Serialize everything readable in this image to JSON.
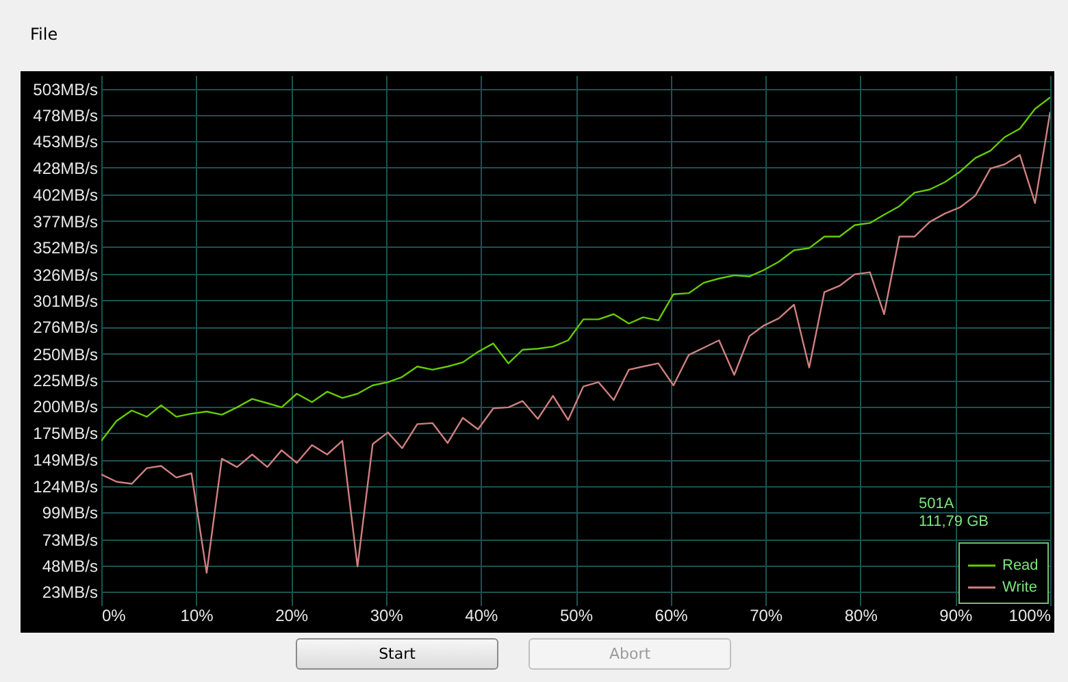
{
  "chart_data": {
    "type": "line",
    "x": [
      0,
      1.6,
      3.2,
      4.8,
      6.3,
      7.9,
      9.5,
      11.1,
      12.7,
      14.3,
      15.9,
      17.5,
      19,
      20.6,
      22.2,
      23.8,
      25.4,
      27,
      28.6,
      30.2,
      31.7,
      33.3,
      34.9,
      36.5,
      38.1,
      39.7,
      41.3,
      42.9,
      44.4,
      46,
      47.6,
      49.2,
      50.8,
      52.4,
      54,
      55.6,
      57.1,
      58.7,
      60.3,
      61.9,
      63.5,
      65.1,
      66.7,
      68.3,
      69.8,
      71.4,
      73,
      74.6,
      76.2,
      77.8,
      79.4,
      81,
      82.5,
      84.1,
      85.7,
      87.3,
      88.9,
      90.5,
      92.1,
      93.7,
      95.2,
      96.8,
      98.4,
      100
    ],
    "series": [
      {
        "name": "Read",
        "color": "#66cc00",
        "values": [
          167,
          186,
          196,
          190,
          201,
          190,
          193,
          195,
          192,
          199,
          207,
          203,
          199,
          212,
          204,
          214,
          208,
          212,
          220,
          223,
          228,
          238,
          235,
          238,
          242,
          252,
          260,
          241,
          254,
          255,
          257,
          263,
          283,
          283,
          288,
          279,
          285,
          282,
          307,
          308,
          318,
          322,
          325,
          324,
          330,
          338,
          349,
          351,
          362,
          362,
          373,
          375,
          383,
          391,
          404,
          407,
          414,
          424,
          437,
          444,
          457,
          465,
          484,
          495
        ]
      },
      {
        "name": "Write",
        "color": "#d08080",
        "values": [
          135,
          128,
          126,
          141,
          143,
          132,
          136,
          41,
          150,
          142,
          154,
          142,
          158,
          146,
          163,
          154,
          167,
          47,
          164,
          175,
          160,
          183,
          184,
          165,
          189,
          178,
          198,
          199,
          205,
          188,
          210,
          187,
          219,
          223,
          206,
          235,
          238,
          241,
          220,
          249,
          256,
          263,
          230,
          267,
          277,
          284,
          297,
          237,
          309,
          315,
          326,
          328,
          288,
          362,
          362,
          376,
          384,
          390,
          401,
          427,
          431,
          440,
          394,
          481
        ]
      }
    ],
    "xlim": [
      0,
      100
    ],
    "xticks": [
      {
        "value": 0,
        "label": "0%"
      },
      {
        "value": 10,
        "label": "10%"
      },
      {
        "value": 20,
        "label": "20%"
      },
      {
        "value": 30,
        "label": "30%"
      },
      {
        "value": 40,
        "label": "40%"
      },
      {
        "value": 50,
        "label": "50%"
      },
      {
        "value": 60,
        "label": "60%"
      },
      {
        "value": 70,
        "label": "70%"
      },
      {
        "value": 80,
        "label": "80%"
      },
      {
        "value": 90,
        "label": "90%"
      },
      {
        "value": 100,
        "label": "100%"
      }
    ],
    "ylim": [
      10,
      516
    ],
    "yticks": [
      {
        "value": 23,
        "label": "23MB/s"
      },
      {
        "value": 48,
        "label": "48MB/s"
      },
      {
        "value": 73,
        "label": "73MB/s"
      },
      {
        "value": 99,
        "label": "99MB/s"
      },
      {
        "value": 124,
        "label": "124MB/s"
      },
      {
        "value": 149,
        "label": "149MB/s"
      },
      {
        "value": 175,
        "label": "175MB/s"
      },
      {
        "value": 200,
        "label": "200MB/s"
      },
      {
        "value": 225,
        "label": "225MB/s"
      },
      {
        "value": 250,
        "label": "250MB/s"
      },
      {
        "value": 276,
        "label": "276MB/s"
      },
      {
        "value": 301,
        "label": "301MB/s"
      },
      {
        "value": 326,
        "label": "326MB/s"
      },
      {
        "value": 352,
        "label": "352MB/s"
      },
      {
        "value": 377,
        "label": "377MB/s"
      },
      {
        "value": 402,
        "label": "402MB/s"
      },
      {
        "value": 428,
        "label": "428MB/s"
      },
      {
        "value": 453,
        "label": "453MB/s"
      },
      {
        "value": 478,
        "label": "478MB/s"
      },
      {
        "value": 503,
        "label": "503MB/s"
      }
    ],
    "grid": true,
    "legend": "bottom right",
    "marker": "none",
    "line_style": "solid",
    "annotations": [
      "File",
      "501A",
      "111,79 GB",
      "Start",
      "Abort"
    ]
  }
}
